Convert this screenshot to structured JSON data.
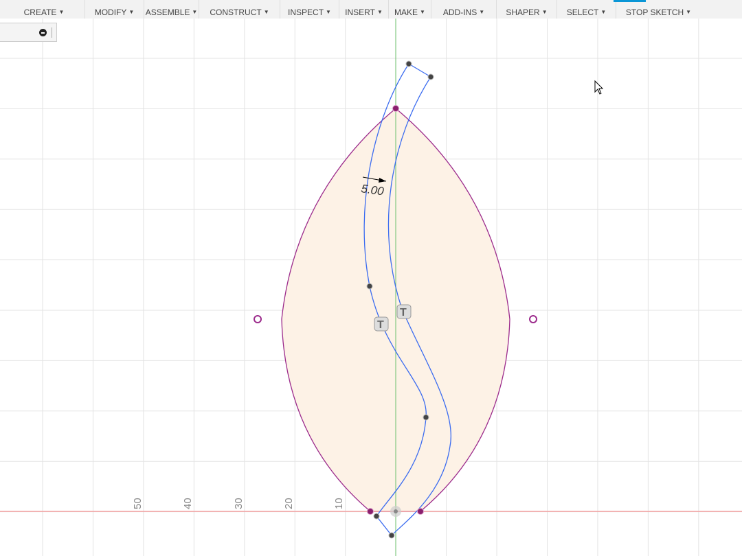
{
  "toolbar": {
    "items": [
      "CREATE",
      "MODIFY",
      "ASSEMBLE",
      "CONSTRUCT",
      "INSPECT",
      "INSERT",
      "MAKE",
      "ADD-INS",
      "SHAPER",
      "SELECT",
      "STOP SKETCH"
    ]
  },
  "sketch": {
    "dimension": "5.00",
    "axis_labels": [
      "50",
      "40",
      "30",
      "20",
      "10"
    ]
  },
  "colors": {
    "profile_fill": "#fdf2e6",
    "curve": "#3b6cf0",
    "arc": "#9c2b8c",
    "x_axis": "#f4a0a0",
    "y_axis": "#6cc06c"
  }
}
